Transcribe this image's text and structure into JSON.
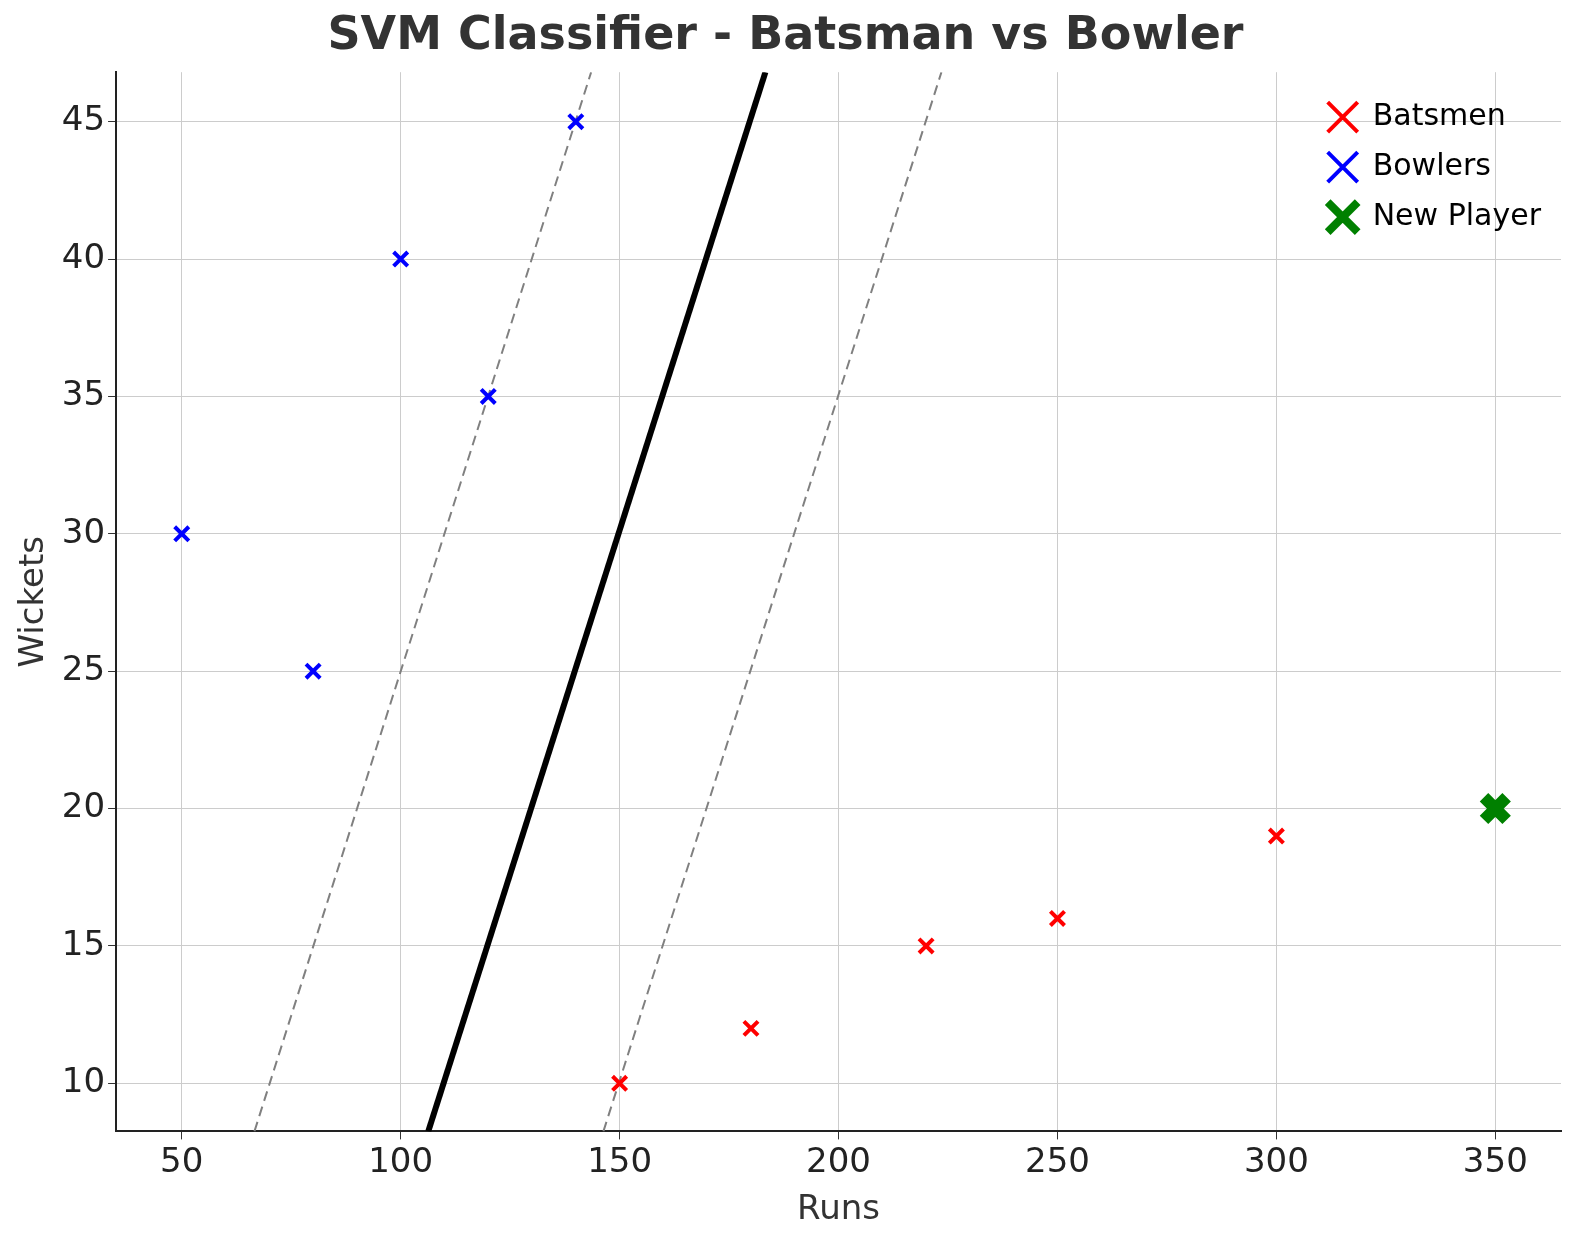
{
  "chart_data": {
    "type": "scatter",
    "title": "SVM Classifier - Batsman vs Bowler",
    "xlabel": "Runs",
    "ylabel": "Wickets",
    "xlim": [
      35,
      365
    ],
    "ylim": [
      8.25,
      46.8
    ],
    "xticks": [
      50,
      100,
      150,
      200,
      250,
      300,
      350
    ],
    "yticks": [
      10,
      15,
      20,
      25,
      30,
      35,
      40,
      45
    ],
    "grid": true,
    "legend": "top right",
    "series": [
      {
        "type": "line",
        "color": "#000000",
        "line_style": "solid",
        "marker": "none",
        "x": [
          106.3,
          183.3
        ],
        "values": [
          8.25,
          46.8
        ]
      },
      {
        "type": "line",
        "color": "#808080",
        "line_style": "dashed",
        "marker": "none",
        "x": [
          66.6,
          143.5
        ],
        "values": [
          8.25,
          46.8
        ]
      },
      {
        "type": "line",
        "color": "#808080",
        "line_style": "dashed",
        "marker": "none",
        "x": [
          146.3,
          223.5
        ],
        "values": [
          8.25,
          46.8
        ]
      },
      {
        "name": "Batsmen",
        "color": "#ff0000",
        "marker": "cross",
        "x": [
          150,
          180,
          220,
          250,
          300
        ],
        "values": [
          10,
          12,
          15,
          16,
          19
        ]
      },
      {
        "name": "Bowlers",
        "color": "#0000ff",
        "marker": "cross",
        "x": [
          50,
          80,
          100,
          120,
          140
        ],
        "values": [
          30,
          25,
          40,
          35,
          45
        ]
      },
      {
        "name": "New Player",
        "color": "#008000",
        "marker": "cross",
        "x": [
          350
        ],
        "values": [
          20
        ]
      }
    ]
  }
}
